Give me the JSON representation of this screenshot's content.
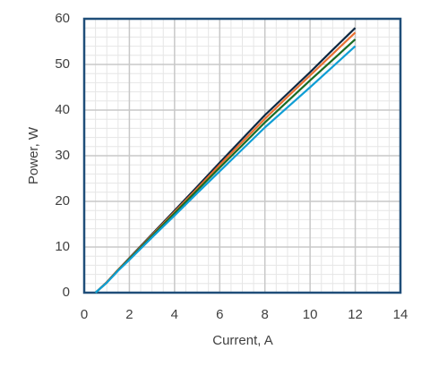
{
  "chart_data": {
    "type": "line",
    "x_label": "Current, A",
    "y_label": "Power, W",
    "x": [
      0.5,
      1,
      1.5,
      2,
      3,
      4,
      5,
      6,
      7,
      8,
      9,
      10,
      11,
      12
    ],
    "series": [
      {
        "color": "#0e2841",
        "values": [
          0,
          2.3,
          5,
          7.6,
          12.8,
          18,
          23.2,
          28.5,
          33.7,
          38.9,
          43.6,
          48.3,
          53.2,
          58
        ]
      },
      {
        "color": "#e97132",
        "values": [
          0,
          2.3,
          5,
          7.5,
          12.6,
          17.7,
          22.8,
          28,
          33,
          38.1,
          42.9,
          47.6,
          52.3,
          57
        ]
      },
      {
        "color": "#196b24",
        "values": [
          0,
          2.2,
          4.9,
          7.4,
          12.4,
          17.4,
          22.4,
          27.4,
          32.3,
          37.3,
          41.9,
          46.5,
          51,
          55.5
        ]
      },
      {
        "color": "#0f9ed5",
        "values": [
          0,
          2.2,
          4.8,
          7.2,
          12.1,
          16.9,
          21.8,
          26.6,
          31.4,
          36.2,
          40.6,
          45,
          49.5,
          54
        ]
      }
    ],
    "xlim": [
      0,
      14
    ],
    "xticks": [
      0,
      2,
      4,
      6,
      8,
      10,
      12,
      14
    ],
    "ylim": [
      0,
      60
    ],
    "yticks": [
      0,
      10,
      20,
      30,
      40,
      50,
      60
    ],
    "grid": true,
    "minor_grid": {
      "x": 0.5,
      "y": 2
    }
  }
}
